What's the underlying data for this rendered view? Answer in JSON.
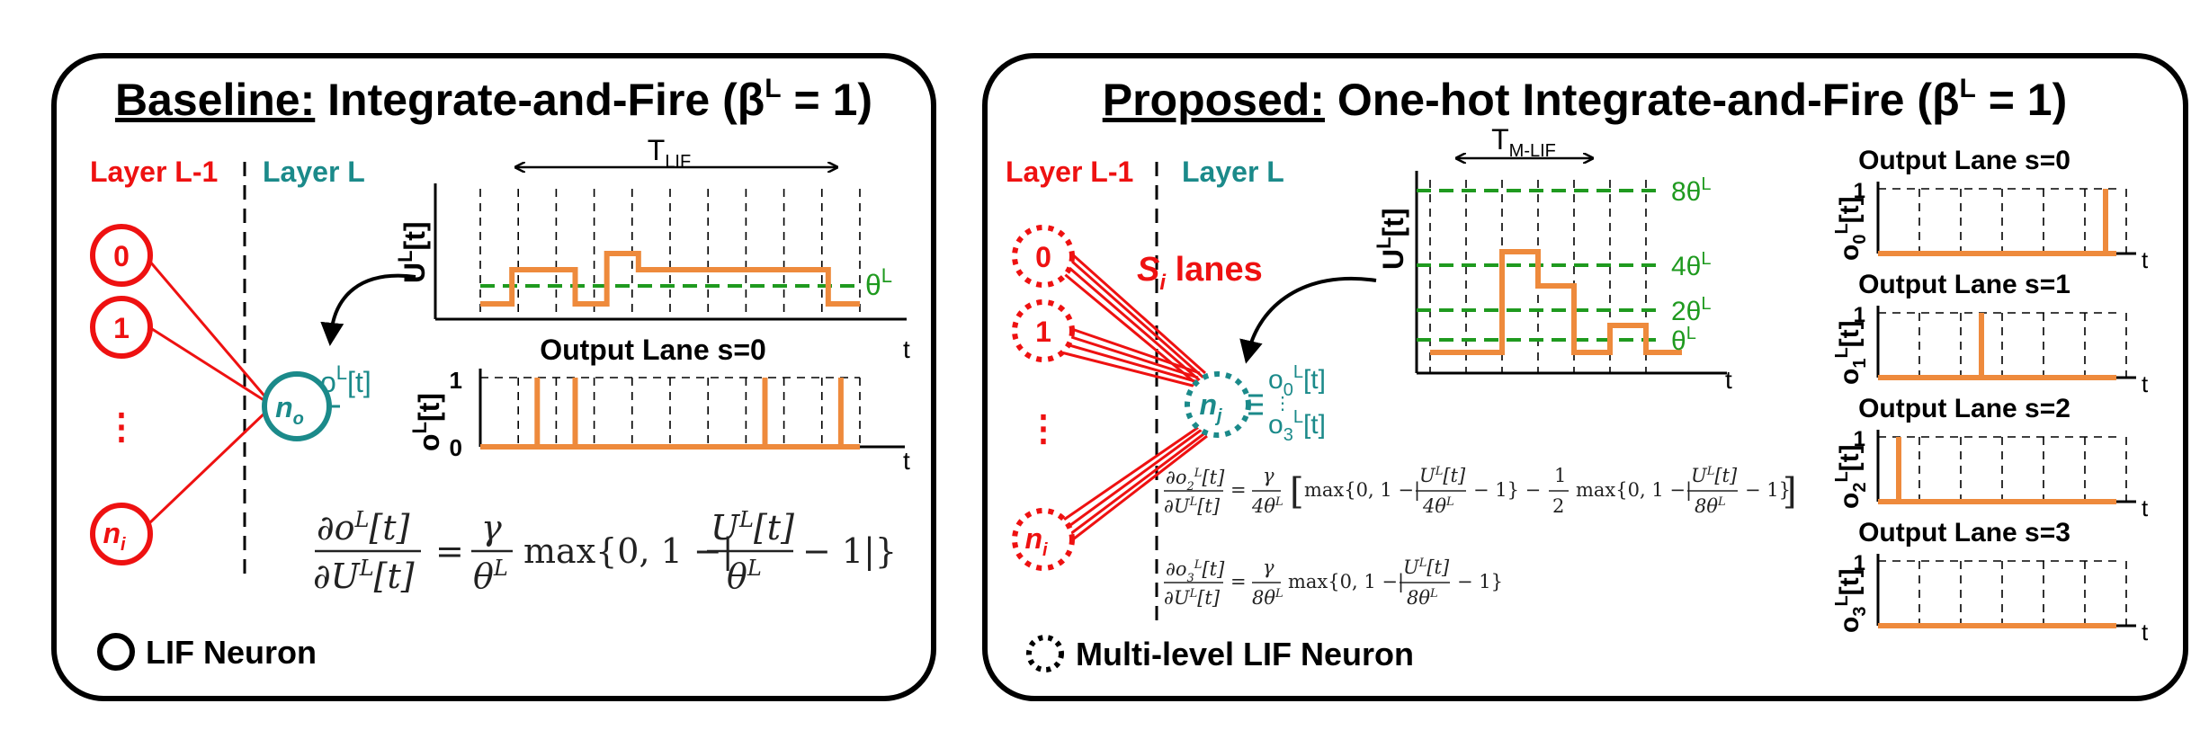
{
  "left_panel": {
    "title_prefix": "Baseline:",
    "title_rest": " Integrate-and-Fire (β",
    "title_sup": "L",
    "title_end": " = 1)",
    "layer_prev": "Layer L-1",
    "layer_cur": "Layer L",
    "input_nodes": [
      "0",
      "1",
      "⋮",
      "n"
    ],
    "input_node_sub": "i",
    "output_node": "n",
    "output_node_sub": "o",
    "output_signal": "o",
    "output_signal_sup": "L",
    "output_signal_rest": "[t]",
    "period_label": "T",
    "period_sub": "LIF",
    "membrane_axis": "U",
    "membrane_axis_sup": "L",
    "membrane_axis_rest": "[t]",
    "threshold": "θ",
    "threshold_sup": "L",
    "time_axis": "t",
    "spike_title": "Output Lane s=0",
    "spike_axis": "o",
    "spike_axis_sup": "L",
    "spike_axis_rest": "[t]",
    "tick_one": "1",
    "tick_zero": "0",
    "legend": "LIF Neuron",
    "membrane_levels": [
      0,
      1,
      1,
      0,
      2,
      1,
      1,
      1,
      1,
      1,
      1,
      0
    ],
    "spike_trains": [
      0,
      1,
      1,
      0,
      0,
      0,
      0,
      1,
      0,
      1,
      0
    ]
  },
  "right_panel": {
    "title_prefix": "Proposed:",
    "title_rest": " One-hot Integrate-and-Fire (β",
    "title_sup": "L",
    "title_end": " = 1)",
    "layer_prev": "Layer L-1",
    "layer_cur": "Layer L",
    "input_nodes": [
      "0",
      "1",
      "⋮",
      "n"
    ],
    "input_node_sub": "i",
    "lanes_label_s": "S",
    "lanes_label_sub": "i",
    "lanes_label_rest": " lanes",
    "hidden_node": "n",
    "hidden_node_sub": "j",
    "out_top": "o",
    "out_top_sub": "0",
    "out_top_sup": "L",
    "out_bottom": "o",
    "out_bottom_sub": "3",
    "out_bottom_sup": "L",
    "out_rest": "[t]",
    "period_label": "T",
    "period_sub": "M-LIF",
    "membrane_axis": "U",
    "membrane_axis_sup": "L",
    "membrane_axis_rest": "[t]",
    "thresholds": [
      "8θ",
      "4θ",
      "2θ",
      "θ"
    ],
    "threshold_sup": "L",
    "time_axis": "t",
    "lanes": [
      {
        "title": "Output Lane s=0",
        "axis_sub": "0",
        "spike_at": 6
      },
      {
        "title": "Output Lane s=1",
        "axis_sub": "1",
        "spike_at": 3
      },
      {
        "title": "Output Lane s=2",
        "axis_sub": "2",
        "spike_at": 1
      },
      {
        "title": "Output Lane s=3",
        "axis_sub": "3",
        "spike_at": null
      }
    ],
    "lane_axis": "o",
    "lane_axis_sup": "L",
    "lane_axis_rest": "[t]",
    "tick_one": "1",
    "legend": "Multi-level LIF Neuron",
    "membrane_levels": [
      0,
      0,
      5,
      4,
      0,
      1,
      0
    ]
  },
  "colors": {
    "red": "#ee1111",
    "teal": "#1b8a8a",
    "green": "#1f9a1f",
    "orange": "#ee8a3c"
  }
}
